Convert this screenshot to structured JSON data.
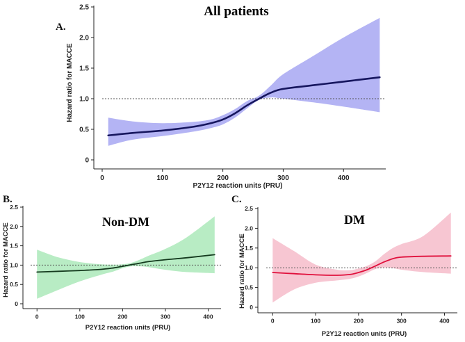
{
  "chart_data": [
    {
      "type": "line",
      "panel_label": "A.",
      "title": "All patients",
      "xlabel": "P2Y12 reaction units (PRU)",
      "ylabel": "Hazard ratio for MACCE",
      "xlim": [
        0,
        470
      ],
      "ylim": [
        0,
        2.5
      ],
      "xticks": [
        0,
        100,
        200,
        300,
        400
      ],
      "yticks": [
        0,
        0.5,
        1.0,
        1.5,
        2.0,
        2.5
      ],
      "ytick_labels": [
        "0",
        "0.5",
        "1.0",
        "1.5",
        "2.0",
        "2.5"
      ],
      "reference_line": 1.0,
      "line_color": "#16165e",
      "band_color": "#b4b4f4",
      "x": [
        10,
        50,
        100,
        150,
        180,
        200,
        220,
        240,
        260,
        280,
        300,
        350,
        400,
        460
      ],
      "hr": [
        0.4,
        0.44,
        0.48,
        0.54,
        0.6,
        0.66,
        0.76,
        0.89,
        1.0,
        1.1,
        1.16,
        1.22,
        1.28,
        1.35
      ],
      "lower": [
        0.23,
        0.33,
        0.39,
        0.46,
        0.52,
        0.58,
        0.69,
        0.84,
        0.98,
        1.02,
        1.0,
        0.94,
        0.87,
        0.78
      ],
      "upper": [
        0.69,
        0.63,
        0.6,
        0.62,
        0.66,
        0.73,
        0.83,
        0.96,
        1.05,
        1.22,
        1.4,
        1.7,
        2.0,
        2.32
      ]
    },
    {
      "type": "line",
      "panel_label": "B.",
      "title": "Non-DM",
      "xlabel": "P2Y12 reaction units (PRU)",
      "ylabel": "Hazard ratio for MACCE",
      "xlim": [
        -15,
        430
      ],
      "ylim": [
        0,
        2.5
      ],
      "xticks": [
        0,
        100,
        200,
        300,
        400
      ],
      "yticks": [
        0,
        0.5,
        1.0,
        1.5,
        2.0,
        2.5
      ],
      "ytick_labels": [
        "0",
        "0.5",
        "1.0",
        "1.5",
        "2.0",
        "2.5"
      ],
      "reference_line": 1.0,
      "line_color": "#143a1e",
      "band_color": "#b8ecc4",
      "x": [
        0,
        50,
        100,
        150,
        180,
        200,
        220,
        240,
        260,
        300,
        350,
        415
      ],
      "hr": [
        0.82,
        0.84,
        0.86,
        0.89,
        0.93,
        0.97,
        1.01,
        1.05,
        1.09,
        1.14,
        1.19,
        1.27
      ],
      "lower": [
        0.13,
        0.36,
        0.58,
        0.75,
        0.84,
        0.92,
        0.97,
        0.97,
        0.95,
        0.88,
        0.82,
        0.79
      ],
      "upper": [
        1.4,
        1.2,
        1.08,
        1.02,
        1.01,
        1.02,
        1.06,
        1.14,
        1.24,
        1.42,
        1.72,
        2.26
      ]
    },
    {
      "type": "line",
      "panel_label": "C.",
      "title": "DM",
      "xlabel": "P2Y12 reaction units (PRU)",
      "ylabel": "Hazard ratio for MACCE",
      "xlim": [
        -15,
        430
      ],
      "ylim": [
        0,
        2.5
      ],
      "xticks": [
        0,
        100,
        200,
        300,
        400
      ],
      "yticks": [
        0,
        0.5,
        1.0,
        1.5,
        2.0,
        2.5
      ],
      "ytick_labels": [
        "0",
        "0.5",
        "1.0",
        "1.5",
        "2.0",
        "2.5"
      ],
      "reference_line": 1.0,
      "line_color": "#e0103c",
      "band_color": "#f7c6d2",
      "x": [
        0,
        50,
        100,
        150,
        180,
        200,
        220,
        240,
        260,
        280,
        300,
        350,
        415
      ],
      "hr": [
        0.88,
        0.85,
        0.82,
        0.81,
        0.83,
        0.88,
        0.95,
        1.05,
        1.15,
        1.23,
        1.27,
        1.29,
        1.3
      ],
      "lower": [
        0.12,
        0.45,
        0.62,
        0.68,
        0.72,
        0.78,
        0.87,
        0.97,
        1.01,
        0.99,
        0.95,
        0.89,
        0.85
      ],
      "upper": [
        1.75,
        1.42,
        1.08,
        0.95,
        0.94,
        0.98,
        1.05,
        1.17,
        1.35,
        1.5,
        1.6,
        1.8,
        2.4
      ]
    }
  ]
}
